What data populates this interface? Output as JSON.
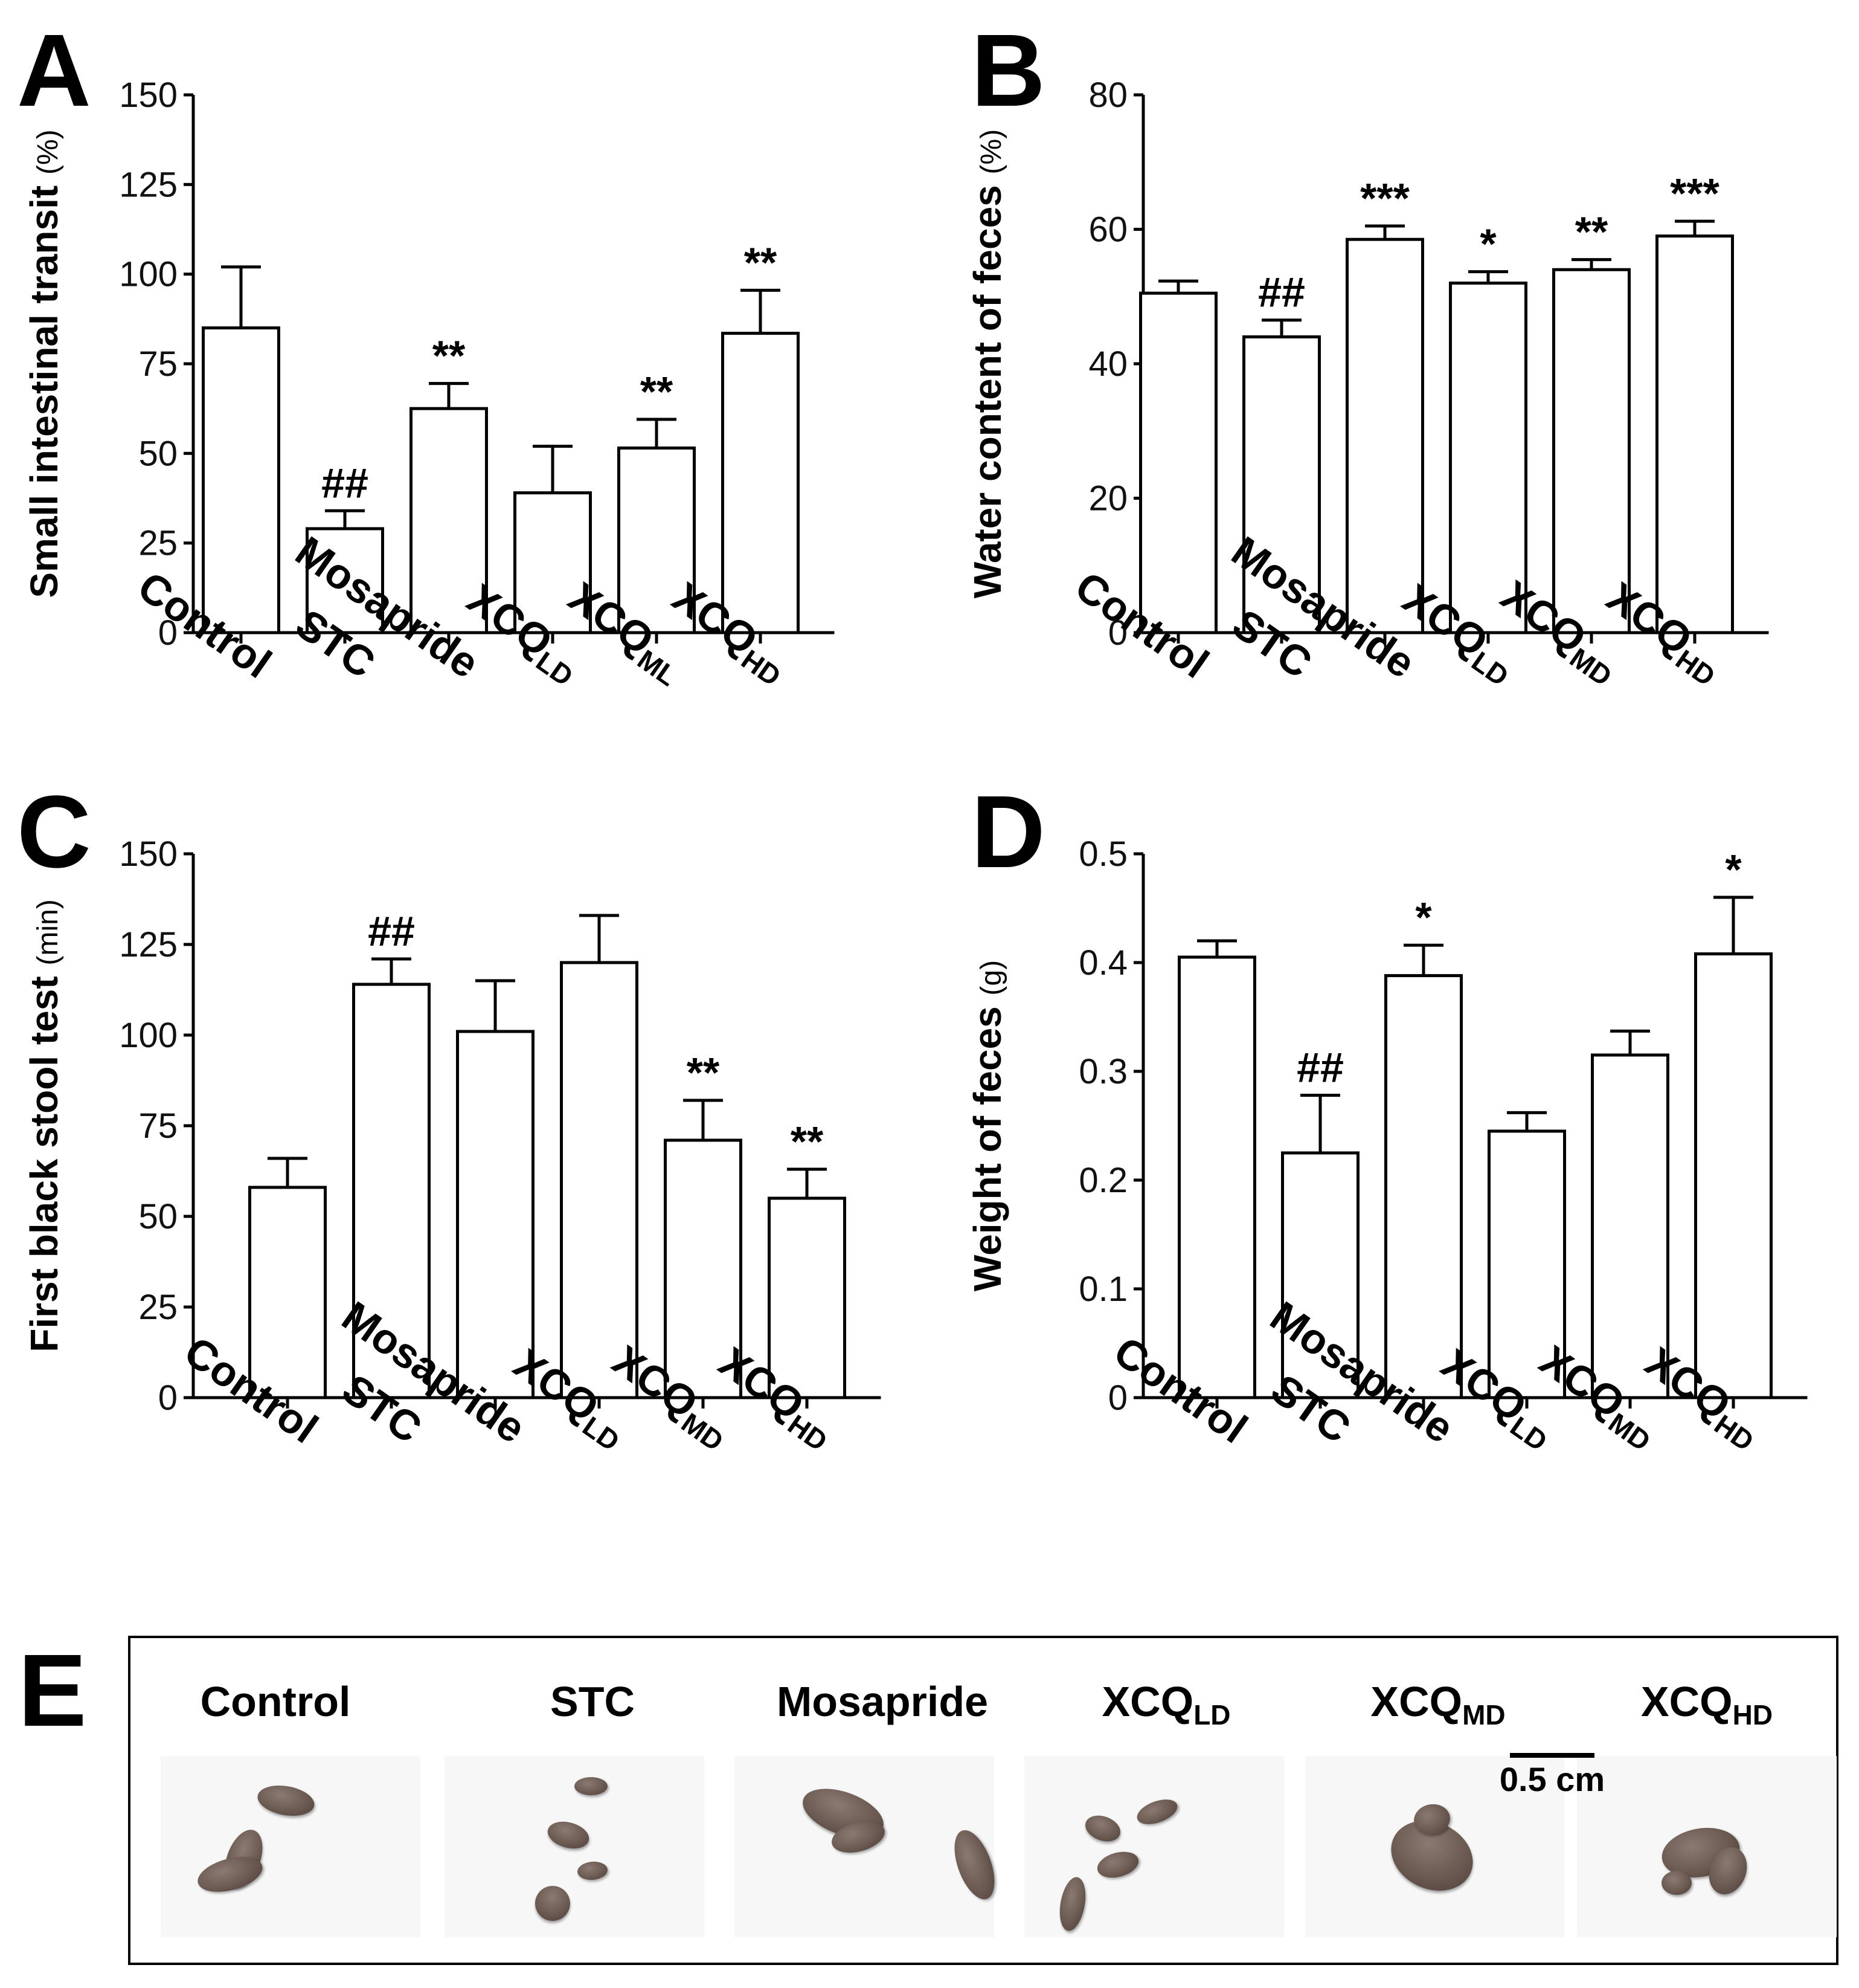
{
  "chart_data": [
    {
      "panel": "A",
      "type": "bar",
      "ylabel": "Small intestinal transit",
      "ylabel_unit": "(%)",
      "ylim": [
        0,
        150
      ],
      "yticks": [
        "0",
        "25",
        "50",
        "75",
        "100",
        "125",
        "150"
      ],
      "categories": [
        {
          "main": "Control",
          "sub": ""
        },
        {
          "main": "STC",
          "sub": ""
        },
        {
          "main": "Mosapride",
          "sub": ""
        },
        {
          "main": "XCQ",
          "sub": "LD"
        },
        {
          "main": "XCQ",
          "sub": "ML"
        },
        {
          "main": "XCQ",
          "sub": "HD"
        }
      ],
      "values": [
        85,
        29,
        62.5,
        39,
        51.5,
        83.5
      ],
      "errors": [
        17,
        5,
        7,
        13,
        8,
        12
      ],
      "annotations": [
        "",
        "##",
        "**",
        "",
        "**",
        "**"
      ]
    },
    {
      "panel": "B",
      "type": "bar",
      "ylabel": "Water content of feces",
      "ylabel_unit": "(%)",
      "ylim": [
        0,
        80
      ],
      "yticks": [
        "0",
        "20",
        "40",
        "60",
        "80"
      ],
      "categories": [
        {
          "main": "Control",
          "sub": ""
        },
        {
          "main": "STC",
          "sub": ""
        },
        {
          "main": "Mosapride",
          "sub": ""
        },
        {
          "main": "XCQ",
          "sub": "LD"
        },
        {
          "main": "XCQ",
          "sub": "MD"
        },
        {
          "main": "XCQ",
          "sub": "HD"
        }
      ],
      "values": [
        50.5,
        44,
        58.5,
        52,
        54,
        59
      ],
      "errors": [
        1.8,
        2.5,
        2.0,
        1.7,
        1.5,
        2.2
      ],
      "annotations": [
        "",
        "##",
        "***",
        "*",
        "**",
        "***"
      ]
    },
    {
      "panel": "C",
      "type": "bar",
      "ylabel": "First black stool test",
      "ylabel_unit": "(min)",
      "ylim": [
        0,
        150
      ],
      "yticks": [
        "0",
        "25",
        "50",
        "75",
        "100",
        "125",
        "150"
      ],
      "categories": [
        {
          "main": "Control",
          "sub": ""
        },
        {
          "main": "STC",
          "sub": ""
        },
        {
          "main": "Mosapride",
          "sub": ""
        },
        {
          "main": "XCQ",
          "sub": "LD"
        },
        {
          "main": "XCQ",
          "sub": "MD"
        },
        {
          "main": "XCQ",
          "sub": "HD"
        }
      ],
      "values": [
        58,
        114,
        101,
        120,
        71,
        55
      ],
      "errors": [
        8,
        7,
        14,
        13,
        11,
        8
      ],
      "annotations": [
        "",
        "##",
        "",
        "",
        "**",
        "**"
      ]
    },
    {
      "panel": "D",
      "type": "bar",
      "ylabel": "Weight of feces",
      "ylabel_unit": "(g)",
      "ylim": [
        0,
        0.5
      ],
      "yticks": [
        "0",
        "0.1",
        "0.2",
        "0.3",
        "0.4",
        "0.5"
      ],
      "categories": [
        {
          "main": "Control",
          "sub": ""
        },
        {
          "main": "STC",
          "sub": ""
        },
        {
          "main": "Mosapride",
          "sub": ""
        },
        {
          "main": "XCQ",
          "sub": "LD"
        },
        {
          "main": "XCQ",
          "sub": "MD"
        },
        {
          "main": "XCQ",
          "sub": "HD"
        }
      ],
      "values": [
        0.405,
        0.225,
        0.388,
        0.245,
        0.315,
        0.408
      ],
      "errors": [
        0.015,
        0.053,
        0.028,
        0.017,
        0.022,
        0.052
      ],
      "annotations": [
        "",
        "##",
        "*",
        "",
        "",
        "*"
      ]
    }
  ],
  "photos": {
    "panel": "E",
    "labels": [
      {
        "main": "Control",
        "sub": ""
      },
      {
        "main": "STC",
        "sub": ""
      },
      {
        "main": "Mosapride",
        "sub": ""
      },
      {
        "main": "XCQ",
        "sub": "LD"
      },
      {
        "main": "XCQ",
        "sub": "MD"
      },
      {
        "main": "XCQ",
        "sub": "HD"
      }
    ],
    "scale_bar_label": "0.5 cm"
  }
}
